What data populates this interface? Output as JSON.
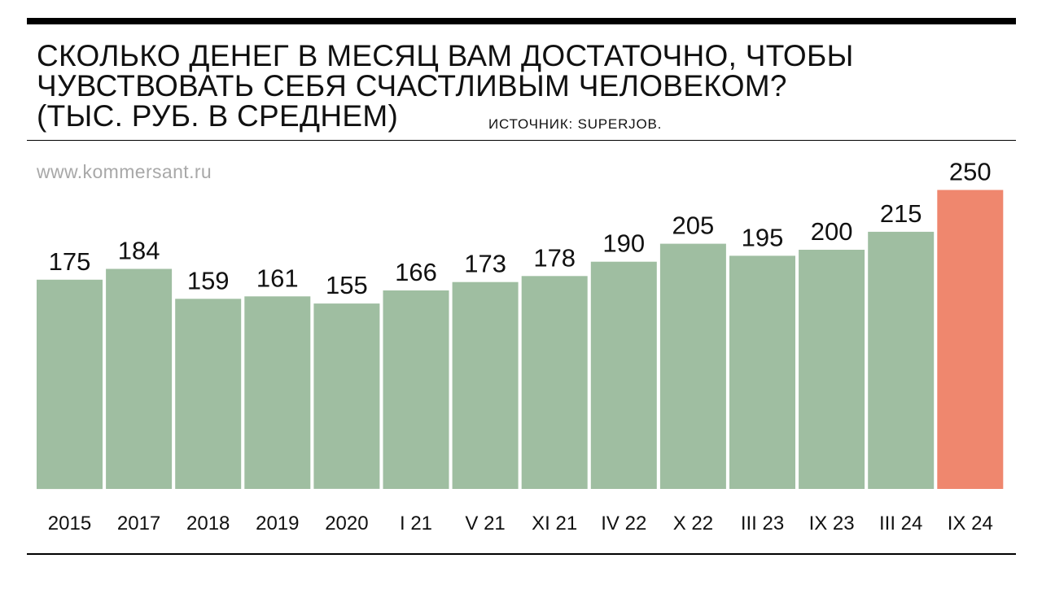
{
  "header": {
    "title_lines": [
      "СКОЛЬКО ДЕНЕГ В МЕСЯЦ ВАМ ДОСТАТОЧНО, ЧТОБЫ",
      "ЧУВСТВОВАТЬ СЕБЯ СЧАСТЛИВЫМ ЧЕЛОВЕКОМ?",
      "(ТЫС. РУБ. В СРЕДНЕМ)"
    ],
    "source": "ИСТОЧНИК: SUPERJOB.",
    "site": "www.kommersant.ru"
  },
  "colors": {
    "bar": "#9fbea1",
    "highlight": "#ef876e",
    "rule": "#000000",
    "site_text": "#a8a8a8"
  },
  "chart_data": {
    "type": "bar",
    "title": "СКОЛЬКО ДЕНЕГ В МЕСЯЦ ВАМ ДОСТАТОЧНО, ЧТОБЫ ЧУВСТВОВАТЬ СЕБЯ СЧАСТЛИВЫМ ЧЕЛОВЕКОМ? (ТЫС. РУБ. В СРЕДНЕМ)",
    "categories": [
      "2015",
      "2017",
      "2018",
      "2019",
      "2020",
      "I 21",
      "V 21",
      "XI 21",
      "IV 22",
      "X 22",
      "III 23",
      "IX 23",
      "III 24",
      "IX 24"
    ],
    "values": [
      175,
      184,
      159,
      161,
      155,
      166,
      173,
      178,
      190,
      205,
      195,
      200,
      215,
      250
    ],
    "highlight_index": 13,
    "ylim": [
      0,
      250
    ],
    "grid": false,
    "data_labels": true,
    "xlabel": "",
    "ylabel": ""
  }
}
